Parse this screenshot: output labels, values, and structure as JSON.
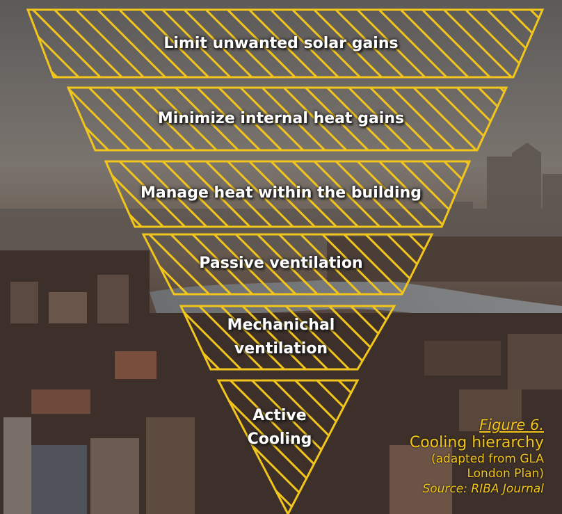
{
  "tiers": [
    {
      "label": "Limit unwanted solar gains"
    },
    {
      "label": "Minimize internal heat gains"
    },
    {
      "label": "Manage heat within the building"
    },
    {
      "label": "Passive ventilation"
    },
    {
      "label_line1": "Mechanichal",
      "label_line2": "ventilation"
    },
    {
      "label_line1": "Active",
      "label_line2": "Cooling"
    }
  ],
  "caption": {
    "figure": "Figure 6.",
    "title": "Cooling hierarchy",
    "note_line1": "(adapted from GLA",
    "note_line2": "London Plan)",
    "source": "Source: RIBA Journal"
  },
  "colors": {
    "accent": "#f2c51c",
    "label_text": "#ffffff",
    "sky": "#6f6a66",
    "city": "#3b2f29"
  }
}
